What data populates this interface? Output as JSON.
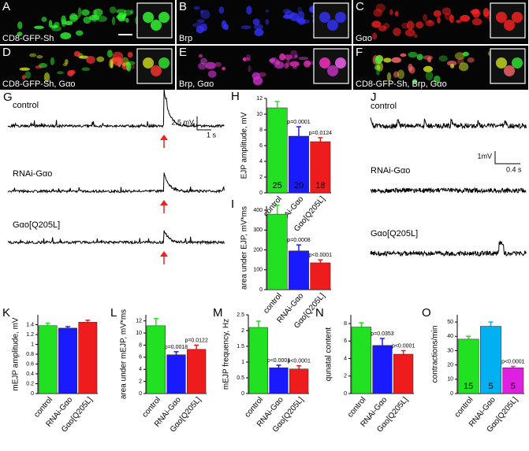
{
  "images": [
    {
      "letter": "A",
      "label": "CD8-GFP-Sh"
    },
    {
      "letter": "B",
      "label": "Brp"
    },
    {
      "letter": "C",
      "label": "Gαo"
    },
    {
      "letter": "D",
      "label": "CD8-GFP-Sh, Gαo"
    },
    {
      "letter": "E",
      "label": "Brp, Gαo"
    },
    {
      "letter": "F",
      "label": "CD8-GFP-Sh, Brp, Gαo"
    }
  ],
  "trace_g": {
    "letter": "G",
    "labels": [
      "control",
      "RNAi-Gαo",
      "Gαo[Q205L]"
    ],
    "scale_y": "2.5 mV",
    "scale_x": "1 s"
  },
  "trace_j": {
    "letter": "J",
    "labels": [
      "control",
      "RNAi-Gαo",
      "Gαo[Q205L]"
    ],
    "scale_y": "1mV",
    "scale_x": "0.4 s"
  },
  "chart_data": [
    {
      "type": "bar",
      "letter": "H",
      "ylabel": "EJP amplitude, mV",
      "categories": [
        "control",
        "RNAi-Gαo",
        "Gαo[Q205L]"
      ],
      "values": [
        10.8,
        7.2,
        6.5
      ],
      "errors": [
        0.8,
        1.2,
        0.5
      ],
      "colors": [
        "#22e022",
        "#1a1aff",
        "#ee1c1c"
      ],
      "p_values": [
        null,
        "p=0.0001",
        "p=0.0124"
      ],
      "n": [
        25,
        20,
        18
      ],
      "ylim": [
        0,
        12
      ],
      "yticks": [
        0,
        2,
        4,
        6,
        8,
        10,
        12
      ]
    },
    {
      "type": "bar",
      "letter": "I",
      "ylabel": "area under EJP, mV*ms",
      "categories": [
        "control",
        "RNAi-Gαo",
        "Gαo[Q205L]"
      ],
      "values": [
        380,
        195,
        135
      ],
      "errors": [
        45,
        30,
        15
      ],
      "colors": [
        "#22e022",
        "#1a1aff",
        "#ee1c1c"
      ],
      "p_values": [
        null,
        "p=0.0008",
        "p<0.0001"
      ],
      "ylim": [
        0,
        420
      ],
      "yticks": [
        0,
        100,
        200,
        300,
        400
      ]
    },
    {
      "type": "bar",
      "letter": "K",
      "ylabel": "mEJP amplitude, mV",
      "categories": [
        "control",
        "RNAi-Gαo",
        "Gαo[Q205L]"
      ],
      "values": [
        1.38,
        1.33,
        1.45
      ],
      "errors": [
        0.05,
        0.03,
        0.04
      ],
      "colors": [
        "#22e022",
        "#1a1aff",
        "#ee1c1c"
      ],
      "p_values": [
        null,
        null,
        null
      ],
      "ylim": [
        0,
        1.6
      ],
      "yticks": [
        0,
        0.2,
        0.4,
        0.6,
        0.8,
        1,
        1.2,
        1.4
      ]
    },
    {
      "type": "bar",
      "letter": "L",
      "ylabel": "area under mEJP, mV*ms",
      "categories": [
        "control",
        "RNAi-Gαo",
        "Gαo[Q205L]"
      ],
      "values": [
        11.2,
        6.4,
        7.3
      ],
      "errors": [
        1.2,
        0.5,
        0.7
      ],
      "colors": [
        "#22e022",
        "#1a1aff",
        "#ee1c1c"
      ],
      "p_values": [
        null,
        "p=0.0018",
        "p=0.0122"
      ],
      "ylim": [
        0,
        13
      ],
      "yticks": [
        0,
        2,
        4,
        6,
        8,
        10,
        12
      ]
    },
    {
      "type": "bar",
      "letter": "M",
      "ylabel": "mEJP frequency, Hz",
      "categories": [
        "control",
        "RNAi-Gαo",
        "Gαo[Q205L]"
      ],
      "values": [
        2.1,
        0.82,
        0.78
      ],
      "errors": [
        0.2,
        0.08,
        0.1
      ],
      "colors": [
        "#22e022",
        "#1a1aff",
        "#ee1c1c"
      ],
      "p_values": [
        null,
        "p<0.0001",
        "p<0.0001"
      ],
      "ylim": [
        0,
        2.5
      ],
      "yticks": [
        0,
        0.5,
        1,
        1.5,
        2,
        2.5
      ]
    },
    {
      "type": "bar",
      "letter": "N",
      "ylabel": "qunatal content",
      "categories": [
        "control",
        "RNAi-Gαo",
        "Gαo[Q205L]"
      ],
      "values": [
        7.6,
        5.5,
        4.5
      ],
      "errors": [
        0.5,
        0.8,
        0.4
      ],
      "colors": [
        "#22e022",
        "#1a1aff",
        "#ee1c1c"
      ],
      "p_values": [
        null,
        "p=0.0353",
        "p<0.0001"
      ],
      "ylim": [
        0,
        9
      ],
      "yticks": [
        0,
        2,
        4,
        6,
        8
      ]
    },
    {
      "type": "bar",
      "letter": "O",
      "ylabel": "contractions/min",
      "categories": [
        "control",
        "RNAi-Gαo",
        "Gαo[Q205L]"
      ],
      "values": [
        38,
        47,
        18
      ],
      "errors": [
        2,
        3,
        1
      ],
      "colors": [
        "#22e022",
        "#00b0f0",
        "#e020e0"
      ],
      "p_values": [
        null,
        null,
        "p<0.0001"
      ],
      "n": [
        15,
        5,
        5
      ],
      "ylim": [
        0,
        55
      ],
      "yticks": [
        0,
        10,
        20,
        30,
        40,
        50
      ]
    }
  ]
}
